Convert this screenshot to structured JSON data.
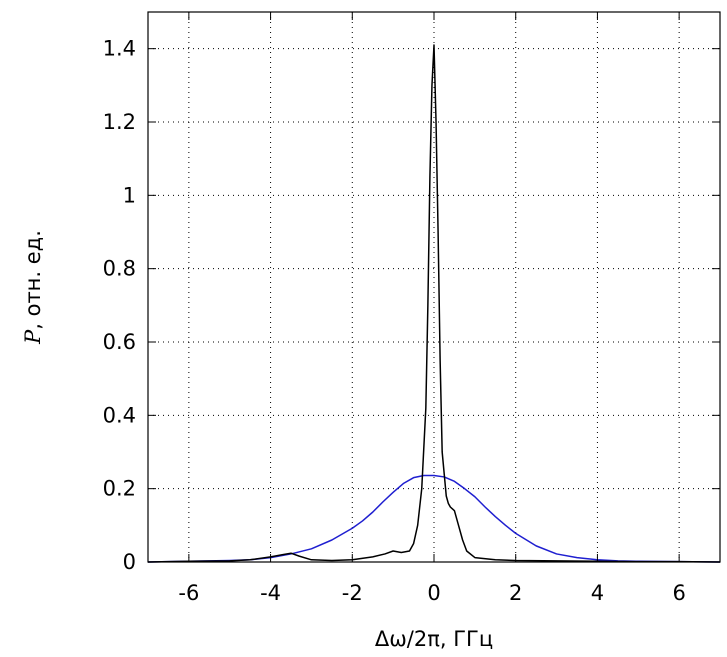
{
  "chart_data": {
    "type": "line",
    "xlabel": "Δω/2π, ГГц",
    "ylabel_var": "P",
    "ylabel_rest": ", отн. ед.",
    "xlim": [
      -7,
      7
    ],
    "ylim": [
      0,
      1.5
    ],
    "x_ticks": [
      -6,
      -4,
      -2,
      0,
      2,
      4,
      6
    ],
    "x_tick_labels": [
      "-6",
      "-4",
      "-2",
      "0",
      "2",
      "4",
      "6"
    ],
    "y_ticks": [
      0,
      0.2,
      0.4,
      0.6,
      0.8,
      1,
      1.2,
      1.4
    ],
    "y_tick_labels": [
      "0",
      "0.2",
      "0.4",
      "0.6",
      "0.8",
      "1",
      "1.2",
      "1.4"
    ],
    "grid": true,
    "series": [
      {
        "color": "#1f1fd0",
        "x": [
          -7,
          -6,
          -5,
          -4.5,
          -4,
          -3.5,
          -3,
          -2.5,
          -2,
          -1.75,
          -1.5,
          -1.25,
          -1,
          -0.75,
          -0.5,
          -0.25,
          0,
          0.25,
          0.5,
          0.75,
          1,
          1.25,
          1.5,
          1.75,
          2,
          2.5,
          3,
          3.5,
          4,
          4.5,
          5,
          6,
          7
        ],
        "y": [
          0,
          0.002,
          0.004,
          0.006,
          0.012,
          0.022,
          0.036,
          0.06,
          0.092,
          0.112,
          0.136,
          0.164,
          0.19,
          0.214,
          0.23,
          0.236,
          0.236,
          0.232,
          0.22,
          0.2,
          0.178,
          0.15,
          0.124,
          0.1,
          0.078,
          0.044,
          0.022,
          0.012,
          0.006,
          0.003,
          0.002,
          0.001,
          0
        ]
      },
      {
        "color": "#000000",
        "x": [
          -7,
          -6,
          -5,
          -4.5,
          -4,
          -3.7,
          -3.5,
          -3.3,
          -3,
          -2.5,
          -2,
          -1.5,
          -1.2,
          -1,
          -0.8,
          -0.6,
          -0.5,
          -0.4,
          -0.3,
          -0.2,
          -0.15,
          -0.1,
          -0.05,
          0,
          0.05,
          0.1,
          0.15,
          0.2,
          0.3,
          0.35,
          0.4,
          0.5,
          0.6,
          0.7,
          0.8,
          1,
          1.5,
          2,
          3,
          4,
          5,
          6,
          7
        ],
        "y": [
          0,
          0.002,
          0.003,
          0.006,
          0.014,
          0.02,
          0.024,
          0.016,
          0.006,
          0.004,
          0.006,
          0.014,
          0.022,
          0.03,
          0.026,
          0.03,
          0.05,
          0.1,
          0.2,
          0.42,
          0.7,
          1.05,
          1.3,
          1.41,
          1.2,
          0.9,
          0.55,
          0.3,
          0.18,
          0.16,
          0.15,
          0.14,
          0.1,
          0.06,
          0.03,
          0.012,
          0.006,
          0.004,
          0.003,
          0.002,
          0.001,
          0.001,
          0
        ]
      }
    ]
  }
}
